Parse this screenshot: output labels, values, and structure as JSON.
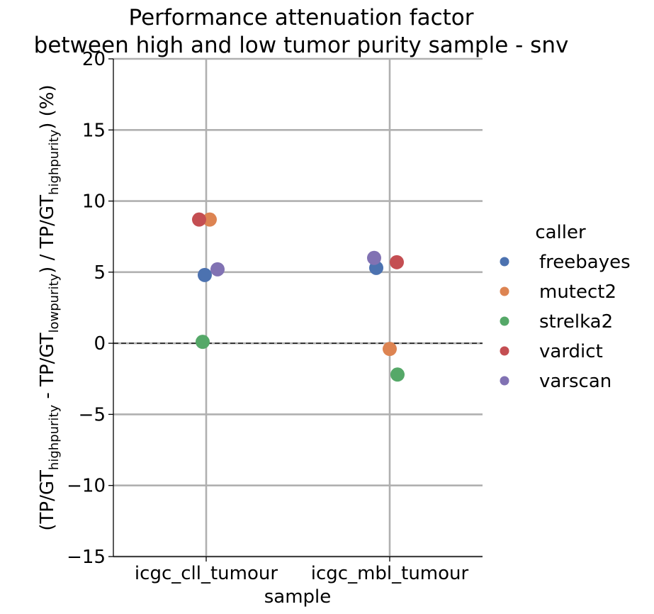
{
  "chart_data": {
    "type": "scatter",
    "title_line1": "Performance attenuation factor",
    "title_line2": "between high and low tumor purity sample - snv",
    "xlabel": "sample",
    "ylabel": {
      "p1": "(TP/GT",
      "s1": "highpurity",
      "p2": " - TP/GT",
      "s2": "lowpurity",
      "p3": ") / TP/GT",
      "s3": "highpurity",
      "p4": ") (%)"
    },
    "categories": [
      "icgc_cll_tumour",
      "icgc_mbl_tumour"
    ],
    "ylim": [
      -15,
      20
    ],
    "yticks": [
      -15,
      -10,
      -5,
      0,
      5,
      10,
      15,
      20
    ],
    "ytick_labels": [
      "−15",
      "−10",
      "−5",
      "0",
      "5",
      "10",
      "15",
      "20"
    ],
    "grid": true,
    "reference_line": 0,
    "legend_title": "caller",
    "legend_position": "right",
    "series": [
      {
        "name": "freebayes",
        "color": "#4c72b0",
        "values": [
          4.8,
          5.3
        ]
      },
      {
        "name": "mutect2",
        "color": "#dd8452",
        "values": [
          8.7,
          -0.4
        ]
      },
      {
        "name": "strelka2",
        "color": "#55a868",
        "values": [
          0.1,
          -2.2
        ]
      },
      {
        "name": "vardict",
        "color": "#c44e52",
        "values": [
          8.7,
          5.7
        ]
      },
      {
        "name": "varscan",
        "color": "#8172b3",
        "values": [
          5.2,
          6.0
        ]
      }
    ]
  }
}
